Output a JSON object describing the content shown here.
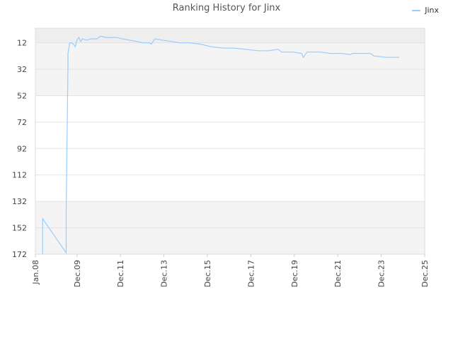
{
  "chart_data": {
    "type": "line",
    "title": "Ranking History for Jinx",
    "xlabel": "",
    "ylabel": "",
    "legend": {
      "position": "top-right",
      "entries": [
        "Jinx"
      ]
    },
    "y_inverted": true,
    "ylim": [
      172,
      1
    ],
    "xlim": [
      "Jan.08",
      "Dec.25"
    ],
    "y_ticks": [
      12,
      32,
      52,
      72,
      92,
      112,
      132,
      152,
      172
    ],
    "x_ticks": [
      "Jan.08",
      "Dec.09",
      "Dec.11",
      "Dec.13",
      "Dec.15",
      "Dec.17",
      "Dec.19",
      "Dec.21",
      "Dec.23",
      "Dec.25"
    ],
    "grid": true,
    "series": [
      {
        "name": "Jinx",
        "color": "#99ccff",
        "points": [
          [
            "2008-05",
            172
          ],
          [
            "2008-05",
            145
          ],
          [
            "2009-06",
            171
          ],
          [
            "2009-06",
            140
          ],
          [
            "2009-07",
            30
          ],
          [
            "2009-07",
            20
          ],
          [
            "2009-08",
            12
          ],
          [
            "2009-09",
            12
          ],
          [
            "2009-10",
            13
          ],
          [
            "2009-11",
            15
          ],
          [
            "2009-12",
            10
          ],
          [
            "2010-01",
            8
          ],
          [
            "2010-02",
            11
          ],
          [
            "2010-03",
            9
          ],
          [
            "2010-05",
            10
          ],
          [
            "2010-08",
            9
          ],
          [
            "2010-11",
            9
          ],
          [
            "2011-01",
            7
          ],
          [
            "2011-04",
            8
          ],
          [
            "2011-07",
            8
          ],
          [
            "2011-10",
            8
          ],
          [
            "2012-01",
            9
          ],
          [
            "2012-05",
            10
          ],
          [
            "2012-09",
            11
          ],
          [
            "2012-12",
            12
          ],
          [
            "2013-04",
            12
          ],
          [
            "2013-05",
            13
          ],
          [
            "2013-07",
            9
          ],
          [
            "2013-11",
            10
          ],
          [
            "2014-04",
            11
          ],
          [
            "2014-09",
            12
          ],
          [
            "2015-02",
            12
          ],
          [
            "2015-08",
            13
          ],
          [
            "2016-02",
            15
          ],
          [
            "2016-09",
            16
          ],
          [
            "2017-03",
            16
          ],
          [
            "2017-09",
            17
          ],
          [
            "2018-04",
            18
          ],
          [
            "2018-10",
            18
          ],
          [
            "2019-03",
            17
          ],
          [
            "2019-05",
            19
          ],
          [
            "2019-11",
            19
          ],
          [
            "2020-04",
            20
          ],
          [
            "2020-05",
            23
          ],
          [
            "2020-07",
            19
          ],
          [
            "2021-02",
            19
          ],
          [
            "2021-08",
            20
          ],
          [
            "2022-02",
            20
          ],
          [
            "2022-07",
            21
          ],
          [
            "2022-08",
            20
          ],
          [
            "2023-06",
            20
          ],
          [
            "2023-08",
            22
          ],
          [
            "2024-03",
            23
          ],
          [
            "2024-10",
            23
          ]
        ]
      }
    ]
  }
}
